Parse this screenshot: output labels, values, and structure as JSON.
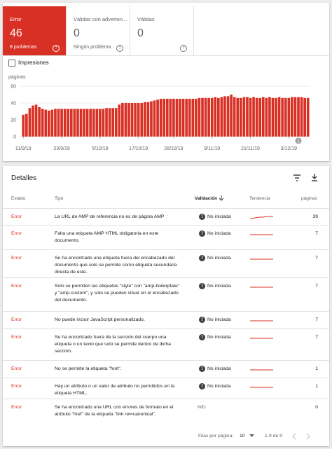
{
  "summary_cards": [
    {
      "label": "Error",
      "count": "46",
      "detail": "8 problemas"
    },
    {
      "label": "Válidas con adverten...",
      "count": "0",
      "detail": "Ningún problema"
    },
    {
      "label": "Válidas",
      "count": "0"
    }
  ],
  "checkbox_label": "Impresiones",
  "chart_data": {
    "type": "bar",
    "y_label": "páginas",
    "categories": [
      "11/9/19",
      null,
      null,
      null,
      null,
      null,
      null,
      null,
      null,
      null,
      null,
      null,
      "23/9/19",
      null,
      null,
      null,
      null,
      null,
      null,
      null,
      null,
      null,
      null,
      null,
      "5/10/19",
      null,
      null,
      null,
      null,
      null,
      null,
      null,
      null,
      null,
      null,
      null,
      "17/10/19",
      null,
      null,
      null,
      null,
      null,
      null,
      null,
      null,
      null,
      null,
      "28/10/19",
      null,
      null,
      null,
      null,
      null,
      null,
      null,
      null,
      null,
      null,
      null,
      "9/11/19",
      null,
      null,
      null,
      null,
      null,
      null,
      null,
      null,
      null,
      null,
      null,
      "21/11/19",
      null,
      null,
      null,
      null,
      null,
      null,
      null,
      null,
      null,
      null,
      null,
      "3/12/19",
      null,
      null,
      null,
      null,
      null,
      null
    ],
    "values": [
      26,
      27,
      34,
      37,
      38,
      35,
      33,
      32,
      31,
      32,
      33,
      33,
      33,
      33,
      33,
      33,
      33,
      33,
      33,
      33,
      33,
      33,
      33,
      33,
      33,
      33,
      34,
      34,
      34,
      34,
      38,
      40,
      40,
      40,
      40,
      40,
      40,
      40,
      41,
      41,
      42,
      43,
      44,
      45,
      45,
      45,
      45,
      45,
      45,
      45,
      45,
      45,
      45,
      45,
      45,
      46,
      46,
      46,
      46,
      46,
      47,
      46,
      47,
      48,
      48,
      50,
      47,
      46,
      46,
      47,
      47,
      46,
      47,
      46,
      46,
      47,
      46,
      47,
      46,
      46,
      47,
      46,
      46,
      46,
      47,
      47,
      47,
      47,
      46,
      46
    ],
    "color": "#d93025",
    "ylim": [
      0,
      60
    ],
    "yticks": [
      0,
      20,
      40,
      60
    ],
    "grid": true,
    "annotation": "1"
  },
  "table": {
    "title": "Detalles",
    "columns": [
      "Estado",
      "Tipo",
      "Validación",
      "Tendencia",
      "páginas"
    ],
    "rows": [
      [
        "Error",
        "La URL de AMP de referencia no es de página AMP",
        "No iniciada",
        "39"
      ],
      [
        "Error",
        "Falta una etiqueta AMP HTML obligatoria en este documento.",
        "No iniciada",
        "7"
      ],
      [
        "Error",
        "Se ha encontrado una etiqueta fuera del encabezado del documento que solo se permite como etiqueta secundaria directa de este.",
        "No iniciada",
        "7"
      ],
      [
        "Error",
        "Solo se permiten las etiquetas \"style\" con \"amp-boilerplate\" y \"amp-custom\", y solo se pueden situar en el encabezado del documento.",
        "No iniciada",
        "7"
      ],
      [
        "Error",
        "No puede incluir JavaScript personalizado.",
        "No iniciada",
        "7"
      ],
      [
        "Error",
        "Se ha encontrado fuera de la sección del cuerpo una etiqueta o un texto que solo se permite dentro de dicha sección.",
        "No iniciada",
        "7"
      ],
      [
        "Error",
        "No se permite la etiqueta \"font\".",
        "No iniciada",
        "1"
      ],
      [
        "Error",
        "Hay un atributo o un valor de atributo no permitidos en la etiqueta HTML.",
        "No iniciada",
        "1"
      ],
      [
        "Error",
        "Se ha encontrado una URL con errores de formato en el atributo \"href\" de la etiqueta \"link rel=canonical\".",
        "N/D",
        "0"
      ]
    ]
  },
  "footer": {
    "rows_per_page_label": "Filas por página:",
    "rows_per_page": "10",
    "range": "1-9 de 9"
  }
}
